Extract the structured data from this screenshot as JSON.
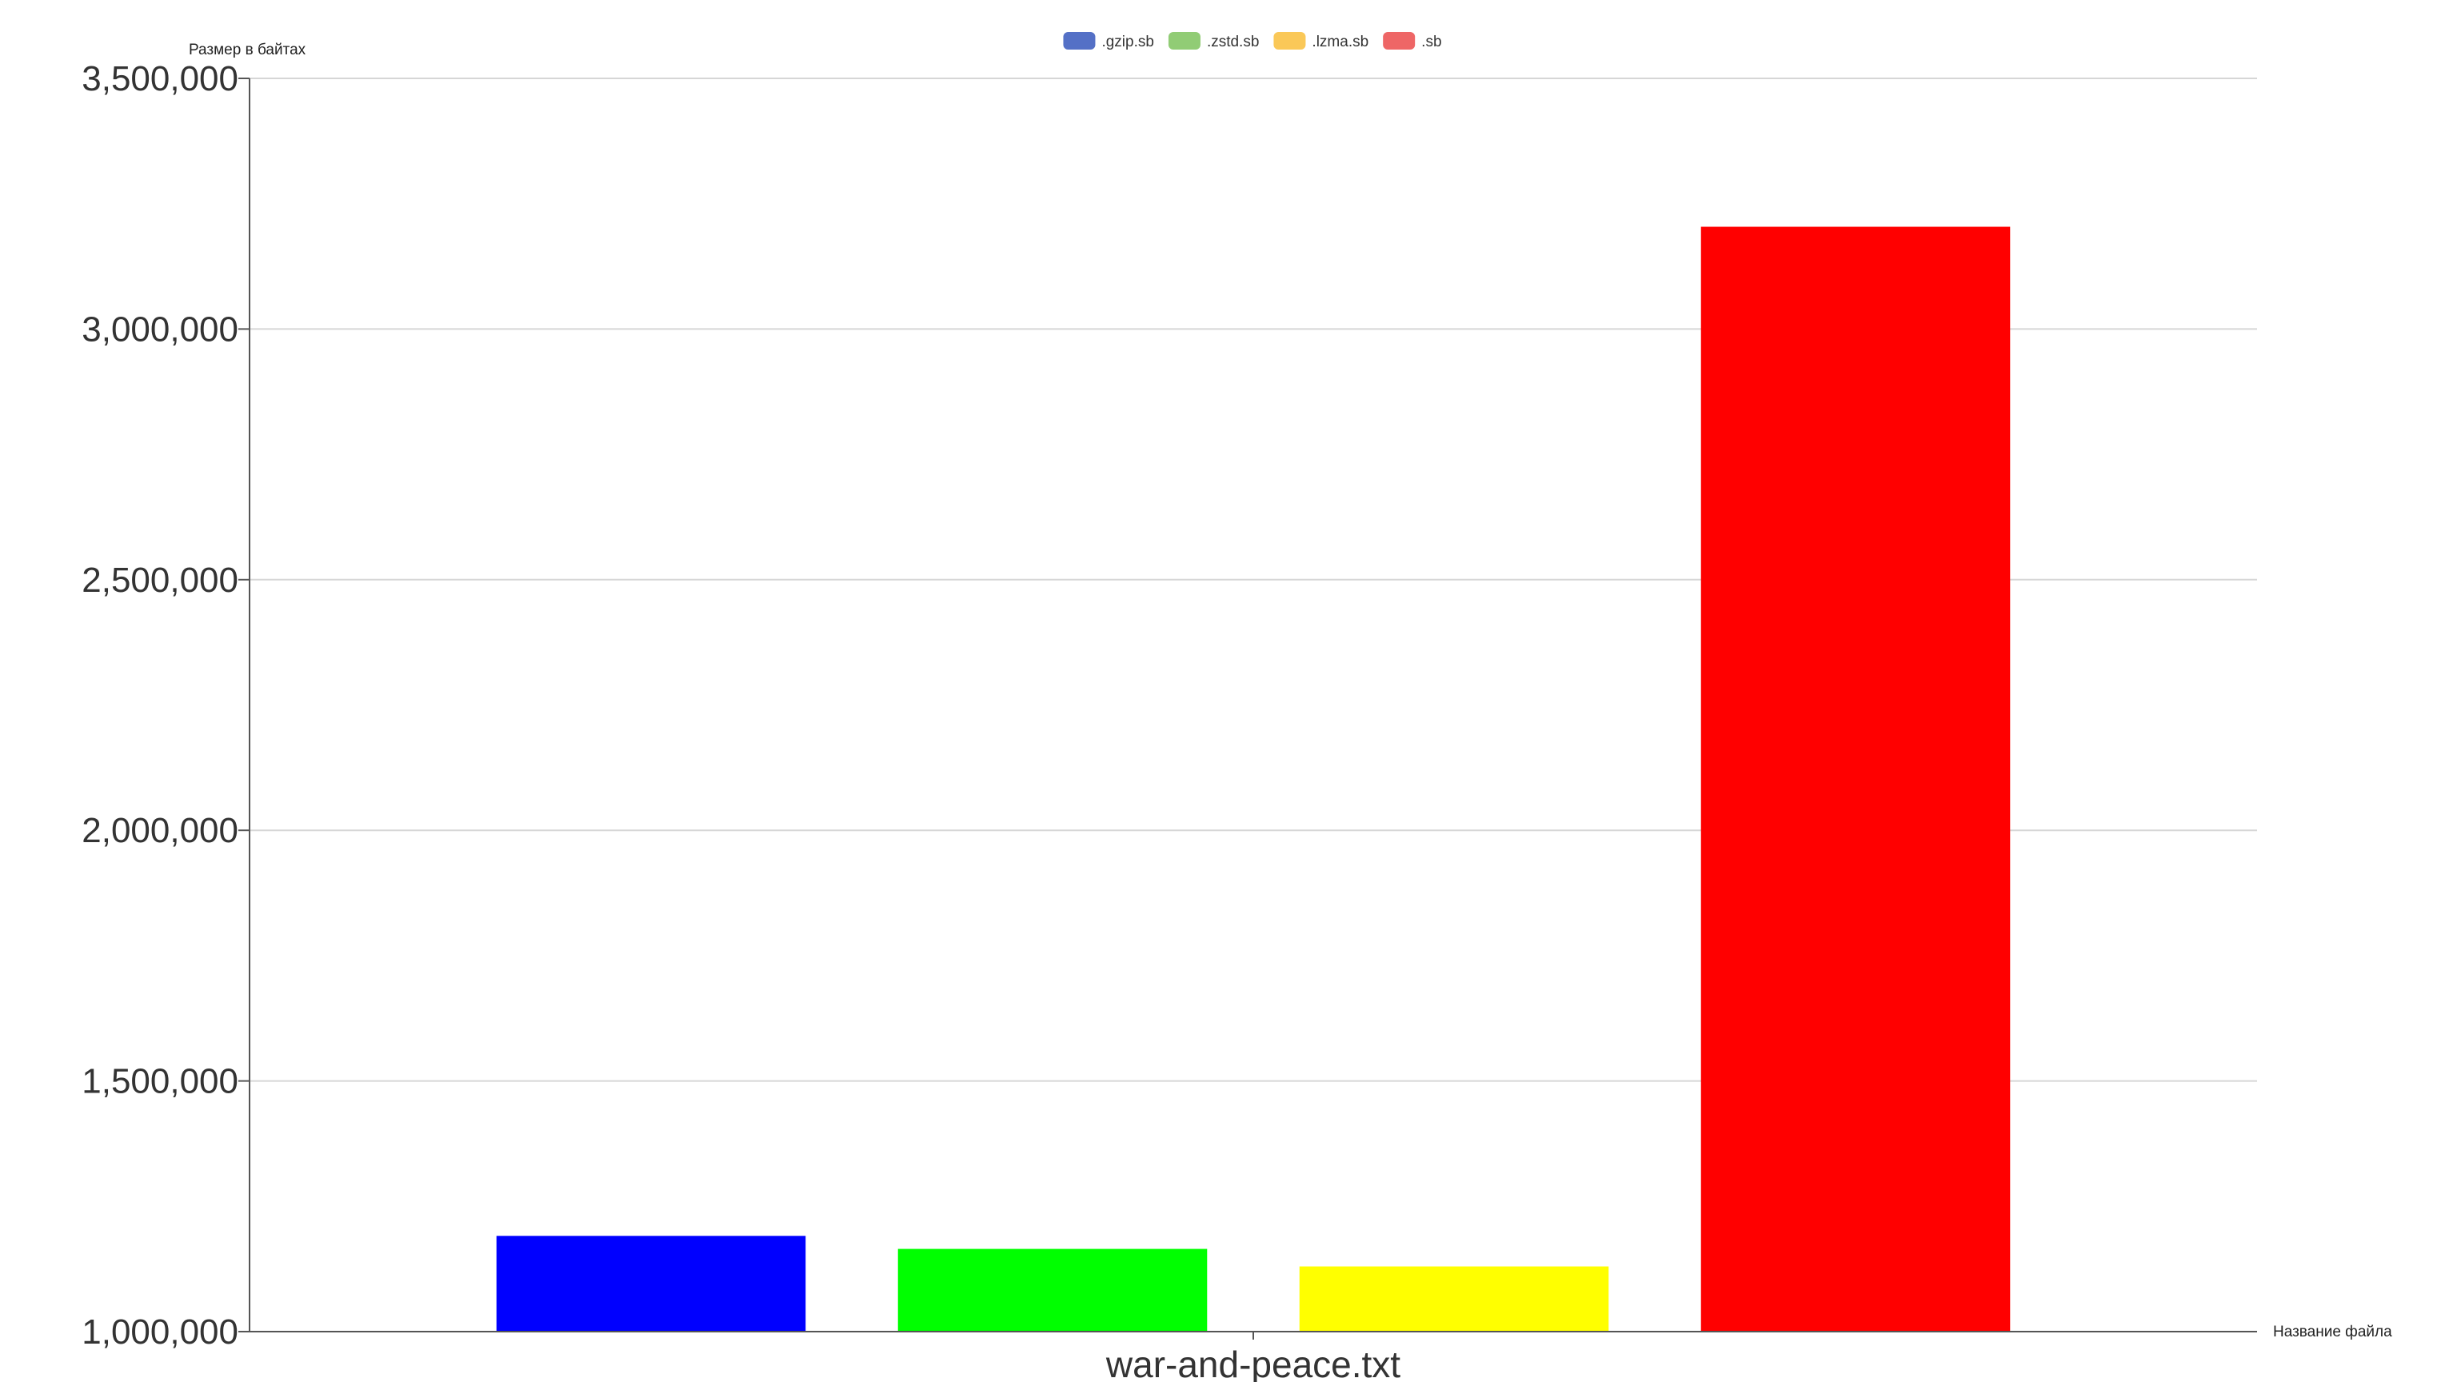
{
  "chart_data": {
    "type": "bar",
    "categories": [
      "war-and-peace.txt"
    ],
    "series": [
      {
        "name": ".gzip.sb",
        "values": [
          1191000
        ],
        "color": "#0000ff",
        "legend_color": "#5470c6"
      },
      {
        "name": ".zstd.sb",
        "values": [
          1165000
        ],
        "color": "#00ff00",
        "legend_color": "#91cc75"
      },
      {
        "name": ".lzma.sb",
        "values": [
          1130000
        ],
        "color": "#ffff00",
        "legend_color": "#fac858"
      },
      {
        "name": ".sb",
        "values": [
          3204000
        ],
        "color": "#ff0000",
        "legend_color": "#ee6666"
      }
    ],
    "title": "",
    "xlabel": "Название файла",
    "ylabel": "Размер в байтах",
    "ylim": [
      1000000,
      3500000
    ],
    "y_ticks": [
      "1,000,000",
      "1,500,000",
      "2,000,000",
      "2,500,000",
      "3,000,000",
      "3,500,000"
    ],
    "y_tick_values": [
      1000000,
      1500000,
      2000000,
      2500000,
      3000000,
      3500000
    ],
    "grid": true,
    "legend_position": "top-center"
  }
}
